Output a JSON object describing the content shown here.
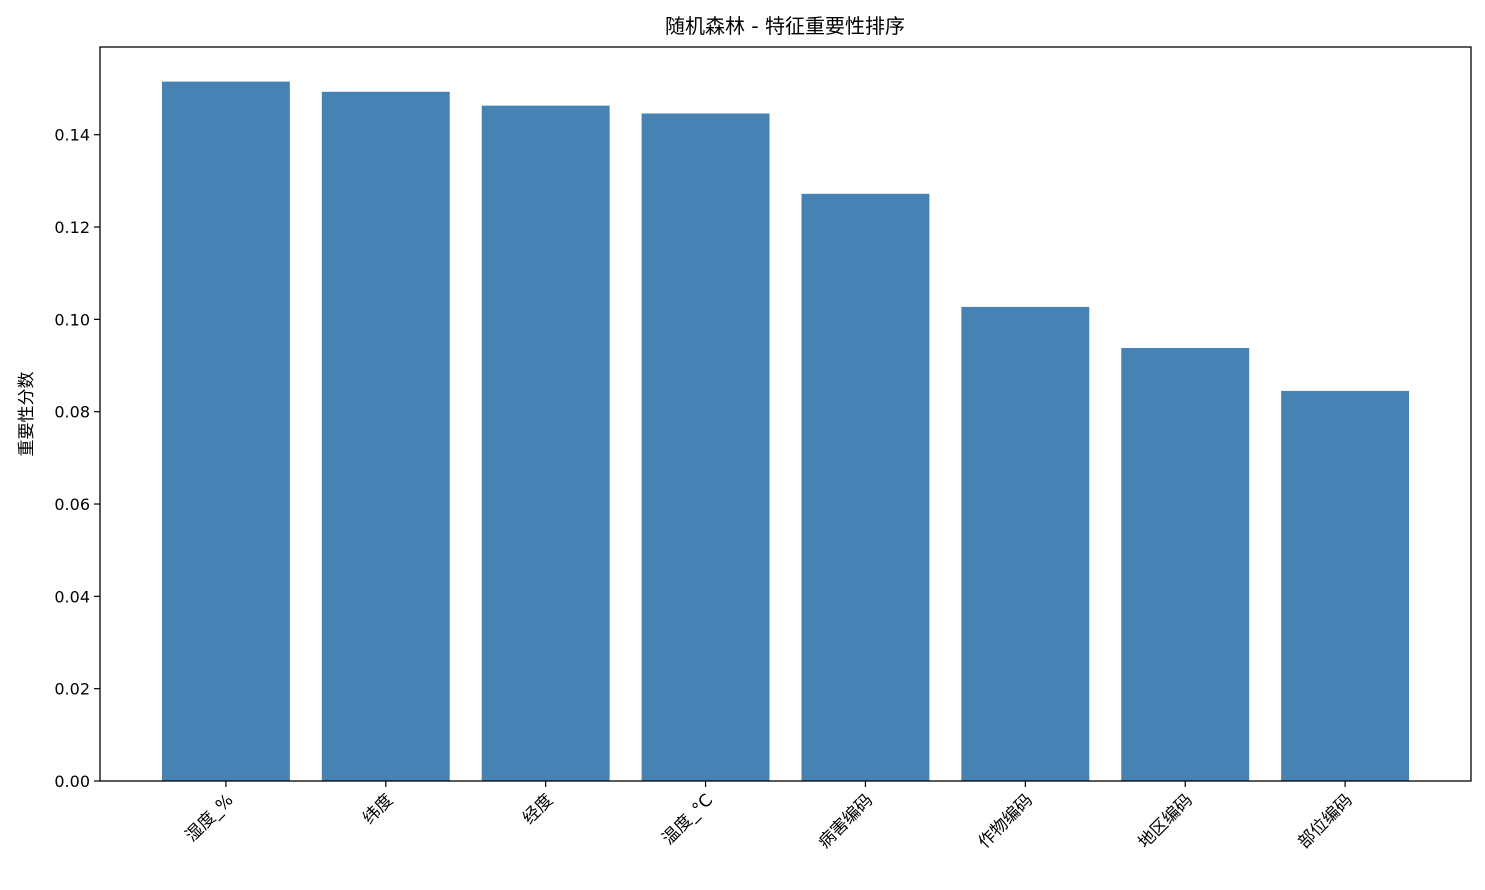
{
  "chart_data": {
    "type": "bar",
    "title": "随机森林 - 特征重要性排序",
    "xlabel": "",
    "ylabel": "重要性分数",
    "categories": [
      "湿度_%",
      "纬度",
      "经度",
      "温度_°C",
      "病害编码",
      "作物编码",
      "地区编码",
      "部位编码"
    ],
    "values": [
      0.1515,
      0.1493,
      0.1463,
      0.1446,
      0.1272,
      0.1027,
      0.0938,
      0.0845
    ],
    "ylim": [
      0,
      0.159
    ],
    "yticks": [
      "0.00",
      "0.02",
      "0.04",
      "0.06",
      "0.08",
      "0.10",
      "0.12",
      "0.14"
    ],
    "xtick_rotation": 45,
    "grid": false,
    "bar_color": "#4682b4"
  }
}
